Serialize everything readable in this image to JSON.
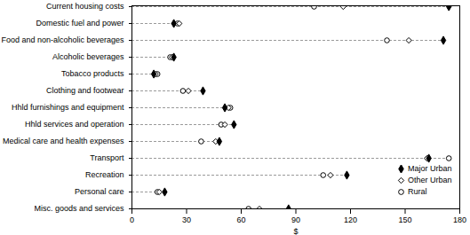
{
  "chart_data": {
    "type": "dot",
    "orientation": "horizontal",
    "categories": [
      "Current housing costs",
      "Domestic fuel and power",
      "Food and non-alcoholic beverages",
      "Alcoholic beverages",
      "Tobacco products",
      "Clothing and footwear",
      "Hhld furnishings and equipment",
      "Hhld services and operation",
      "Medical care and health expenses",
      "Transport",
      "Recreation",
      "Personal care",
      "Misc. goods and services"
    ],
    "series": [
      {
        "name": "Major Urban",
        "marker": "diamond",
        "color": "#000000",
        "values": [
          174,
          23,
          171,
          23,
          12,
          39,
          51,
          56,
          48,
          163,
          118,
          18,
          86
        ]
      },
      {
        "name": "Other Urban",
        "marker": "diamond-open",
        "color": "#000000",
        "values": [
          116,
          26,
          152,
          22,
          13,
          31,
          53,
          51,
          46,
          162,
          109,
          15,
          70
        ]
      },
      {
        "name": "Rural",
        "marker": "circle-open",
        "color": "#000000",
        "values": [
          100,
          25,
          140,
          21,
          14,
          28,
          54,
          49,
          38,
          174,
          105,
          14,
          64
        ]
      }
    ],
    "xlabel": "$",
    "xlim": [
      0,
      180
    ],
    "xticks": [
      0,
      30,
      60,
      90,
      120,
      150,
      180
    ],
    "legend": "bottom-right"
  }
}
